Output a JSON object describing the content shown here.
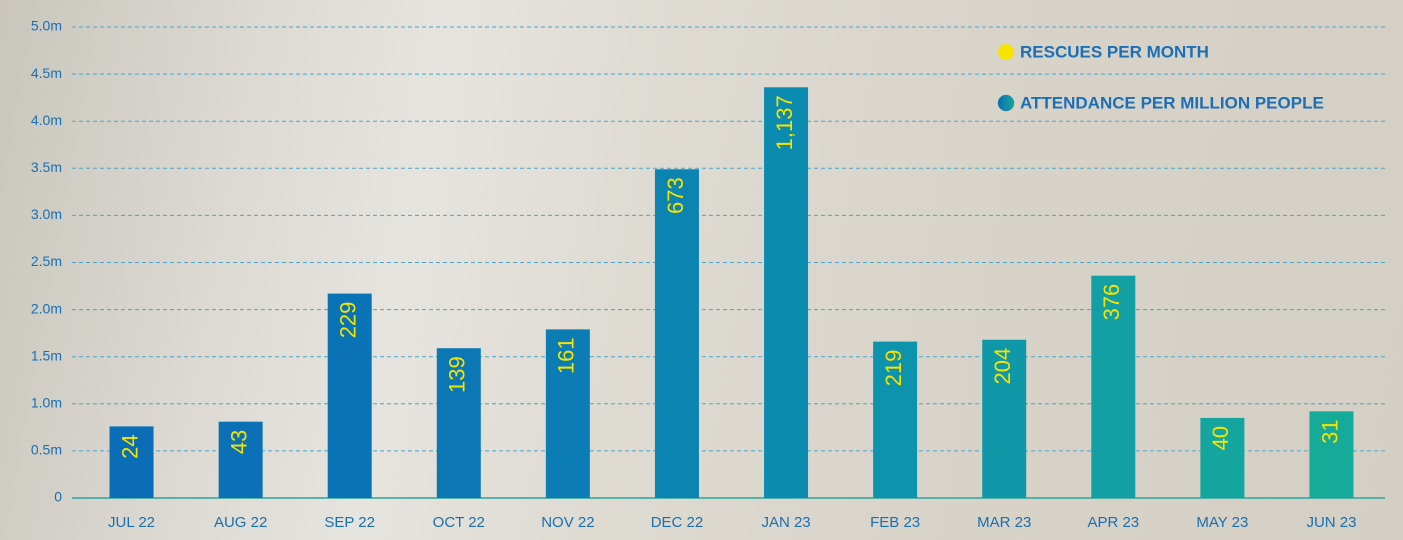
{
  "chart_data": {
    "type": "bar",
    "categories": [
      "JUL 22",
      "AUG 22",
      "SEP 22",
      "OCT 22",
      "NOV 22",
      "DEC 22",
      "JAN 23",
      "FEB 23",
      "MAR 23",
      "APR 23",
      "MAY 23",
      "JUN 23"
    ],
    "series": [
      {
        "name": "RESCUES PER MONTH",
        "color": "#f5e400",
        "values": [
          24,
          43,
          229,
          139,
          161,
          673,
          1137,
          219,
          204,
          376,
          40,
          31
        ],
        "value_labels": [
          "24",
          "43",
          "229",
          "139",
          "161",
          "673",
          "1,137",
          "219",
          "204",
          "376",
          "40",
          "31"
        ]
      },
      {
        "name": "ATTENDANCE PER MILLION PEOPLE",
        "color": "#1a7fbf",
        "values": [
          0.76,
          0.81,
          2.17,
          1.59,
          1.79,
          3.49,
          4.36,
          1.66,
          1.68,
          2.36,
          0.85,
          0.92
        ],
        "colors": [
          "#0a6db6",
          "#0b70b6",
          "#0a73b5",
          "#0b78b5",
          "#0b7db4",
          "#0b84b2",
          "#0b8bb0",
          "#0d93ac",
          "#0f99a8",
          "#12a0a4",
          "#14a69e",
          "#16aa98"
        ]
      }
    ],
    "ylim": [
      0,
      5
    ],
    "yticks": [
      0,
      {
        "value": 0.5,
        "label": "0.5m"
      },
      {
        "value": 1,
        "label": "1.0m"
      },
      {
        "value": 1.5,
        "label": "1.5m"
      },
      {
        "value": 2,
        "label": "2.0m"
      },
      {
        "value": 2.5,
        "label": "2.5m"
      },
      {
        "value": 3,
        "label": "3.0m"
      },
      {
        "value": 3.5,
        "label": "3.5m"
      },
      {
        "value": 4,
        "label": "4.0m"
      },
      {
        "value": 4.5,
        "label": "4.5m"
      },
      {
        "value": 5,
        "label": "5.0m"
      }
    ],
    "grid": true
  }
}
